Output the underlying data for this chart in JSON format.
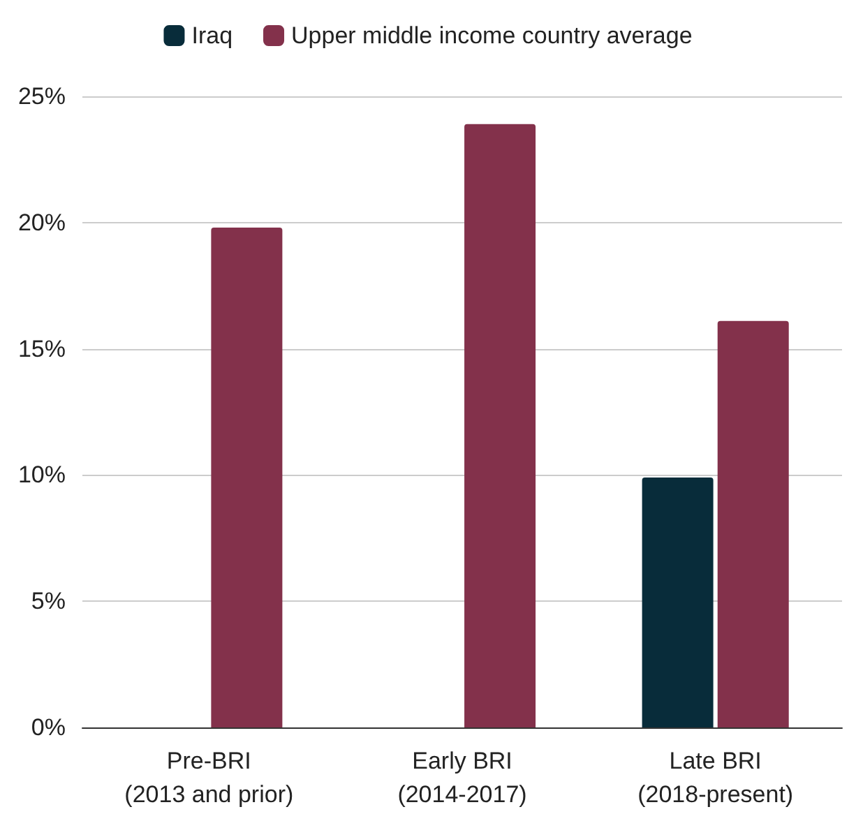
{
  "chart_data": {
    "type": "bar",
    "categories": [
      "Pre-BRI\n(2013 and prior)",
      "Early BRI\n(2014-2017)",
      "Late BRI\n(2018-present)"
    ],
    "series": [
      {
        "name": "Iraq",
        "color": "#082c3a",
        "values": [
          null,
          null,
          9.9
        ]
      },
      {
        "name": "Upper middle income country average",
        "color": "#83314b",
        "values": [
          19.8,
          23.9,
          16.1
        ]
      }
    ],
    "ylim": [
      0,
      25
    ],
    "yticks": [
      {
        "value": 0,
        "label": "0%"
      },
      {
        "value": 5,
        "label": "5%"
      },
      {
        "value": 10,
        "label": "10%"
      },
      {
        "value": 15,
        "label": "15%"
      },
      {
        "value": 20,
        "label": "20%"
      },
      {
        "value": 25,
        "label": "25%"
      }
    ],
    "grid": "y",
    "legend": "top"
  }
}
